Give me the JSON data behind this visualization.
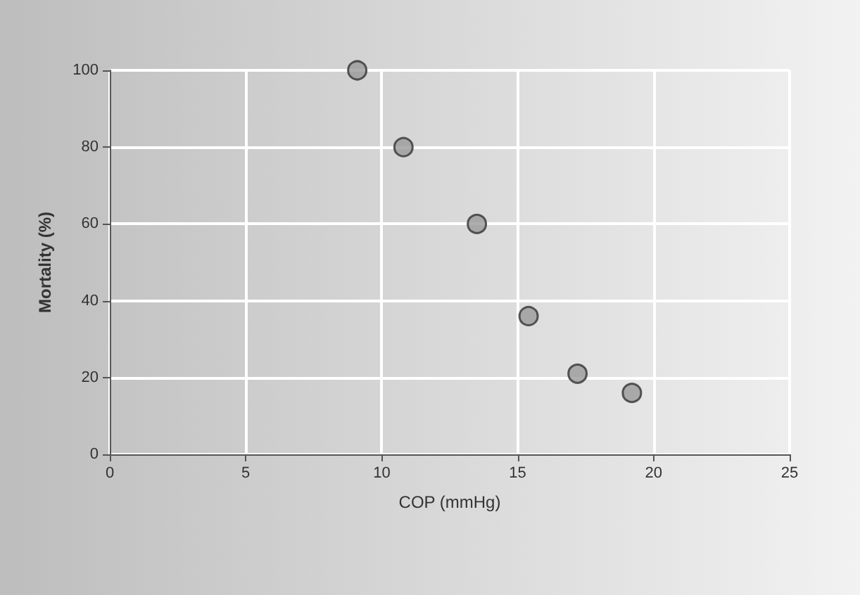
{
  "chart_data": {
    "type": "scatter",
    "xlabel": "COP (mmHg)",
    "ylabel": "Mortality (%)",
    "x": [
      9.1,
      10.8,
      13.5,
      15.4,
      17.2,
      19.2
    ],
    "values": [
      100,
      80,
      60,
      36,
      21,
      16
    ],
    "color": "#9a9a9a",
    "marker": "circle",
    "grid": true,
    "xlim": [
      0,
      25
    ],
    "xticks": [
      0,
      5,
      10,
      15,
      20,
      25
    ],
    "ylim": [
      0,
      100
    ],
    "yticks": [
      0,
      20,
      40,
      60,
      80,
      100
    ]
  }
}
